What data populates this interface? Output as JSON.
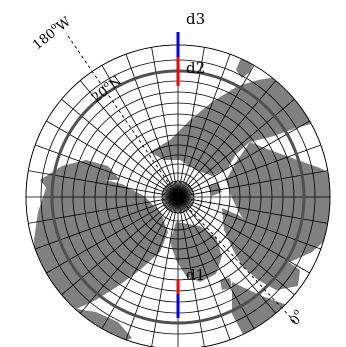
{
  "map": {
    "projection": "north-polar-stereographic",
    "labels": {
      "lon_west": "180",
      "lon_west_deg": "o",
      "lon_west_hemi": "W",
      "lat": "20",
      "lat_deg": "o",
      "lat_hemi": "N",
      "lon_zero": "0",
      "lon_zero_deg": "o"
    },
    "points": [
      {
        "label": "d1"
      },
      {
        "label": "d2"
      },
      {
        "label": "d3"
      }
    ],
    "colors": {
      "land": "#808080",
      "boundary_circle": "#505050",
      "segment_red": "#ff0000",
      "segment_blue": "#0000ff"
    }
  }
}
